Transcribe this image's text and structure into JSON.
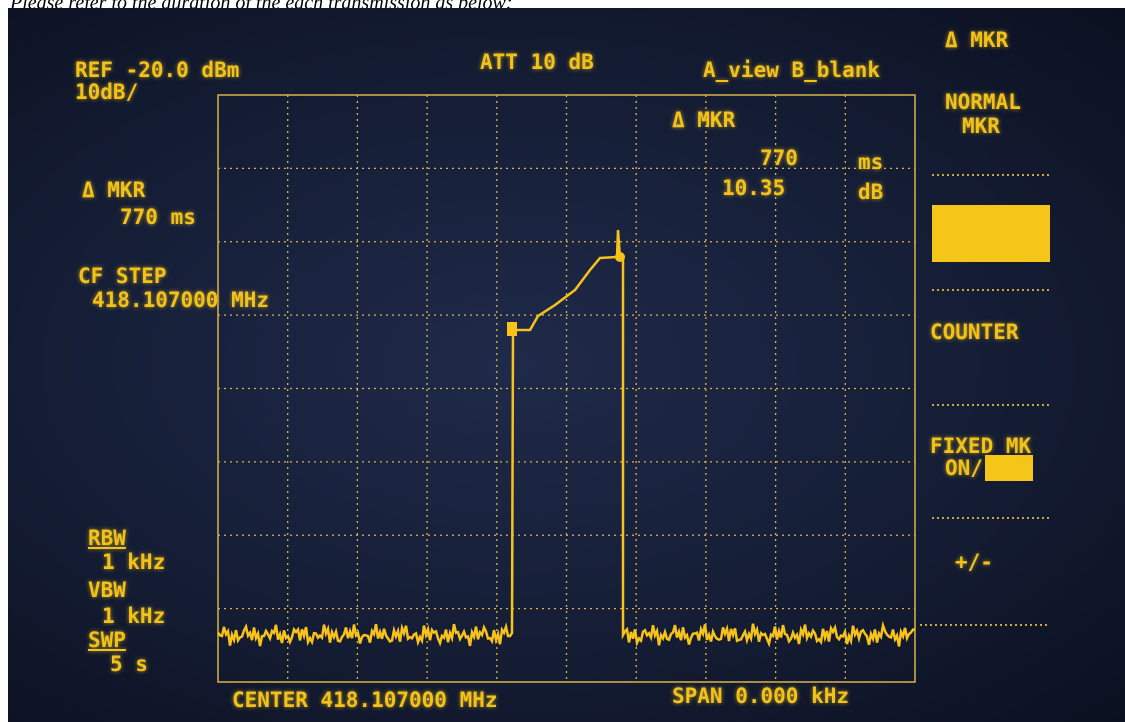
{
  "caption": "Please refer to the duration of the each transmission as below:",
  "header": {
    "ref": "REF -20.0 dBm",
    "scale": "10dB/",
    "att": "ATT 10 dB",
    "view": "A_view B_blank"
  },
  "left_panel": {
    "marker_label": "Δ MKR",
    "marker_time": "770 ms",
    "cf_step_label": "CF STEP",
    "cf_step_value": "418.107000 MHz",
    "rbw_label": "RBW",
    "rbw_value": "1 kHz",
    "vbw_label": "VBW",
    "vbw_value": "1 kHz",
    "swp_label": "SWP",
    "swp_value": "5 s"
  },
  "marker_readout": {
    "label": "Δ MKR",
    "time": "770",
    "time_unit": "ms",
    "level": "10.35",
    "level_unit": "dB"
  },
  "footer": {
    "center": "CENTER 418.107000 MHz",
    "span": "SPAN 0.000 kHz"
  },
  "softkeys": {
    "title": "Δ MKR",
    "normal_1": "NORMAL",
    "normal_2": "MKR",
    "counter": "COUNTER",
    "fixed_1": "FIXED MK",
    "fixed_2": "ON/",
    "sign": "+/-"
  }
}
